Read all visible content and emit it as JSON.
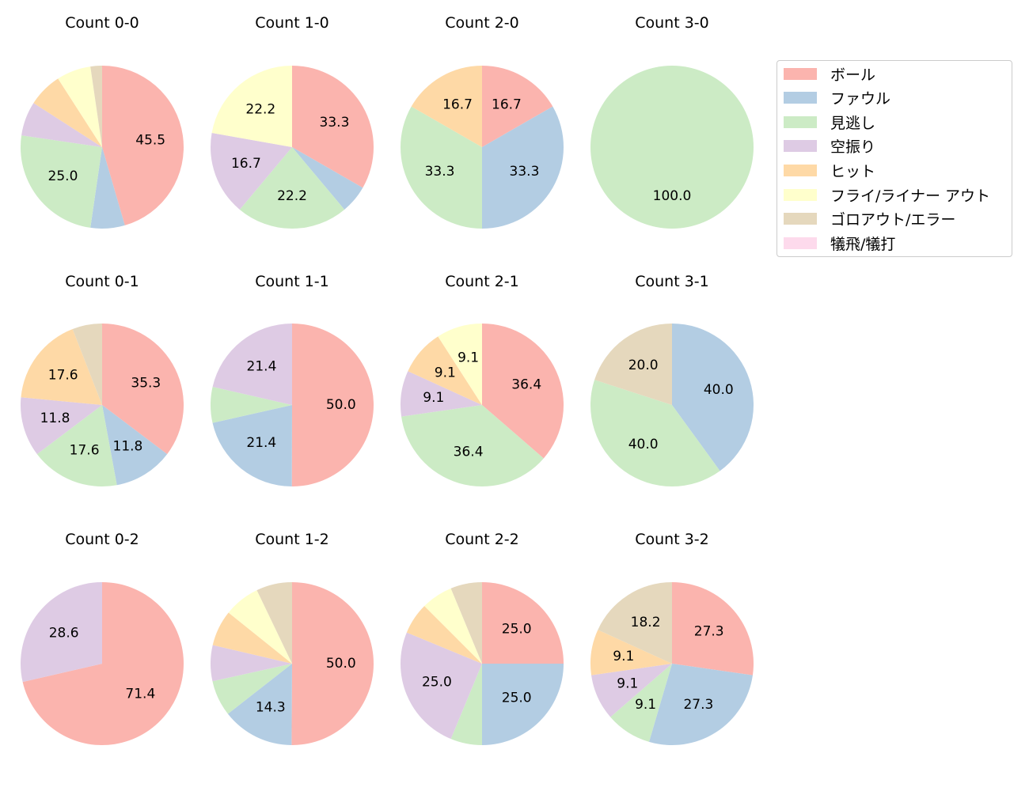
{
  "chart_data": {
    "type": "pie",
    "layout": {
      "rows": 3,
      "cols": 4,
      "legend_position": "upper right"
    },
    "legend": [
      {
        "label": "ボール",
        "color": "#fbb4ae"
      },
      {
        "label": "ファウル",
        "color": "#b3cde3"
      },
      {
        "label": "見逃し",
        "color": "#ccebc5"
      },
      {
        "label": "空振り",
        "color": "#decbe4"
      },
      {
        "label": "ヒット",
        "color": "#fed9a6"
      },
      {
        "label": "フライ/ライナー アウト",
        "color": "#ffffcc"
      },
      {
        "label": "ゴロアウト/エラー",
        "color": "#e5d8bd"
      },
      {
        "label": "犠飛/犠打",
        "color": "#fddaec"
      }
    ],
    "categories": [
      "ボール",
      "ファウル",
      "見逃し",
      "空振り",
      "ヒット",
      "フライ/ライナー アウト",
      "ゴロアウト/エラー",
      "犠飛/犠打"
    ],
    "charts": [
      {
        "title": "Count 0-0",
        "row": 0,
        "col": 0,
        "values": [
          45.5,
          6.8,
          25.0,
          6.8,
          6.8,
          6.8,
          2.3,
          0
        ],
        "labels_shown": [
          "45.5",
          "",
          "25.0",
          "",
          "",
          "",
          "",
          ""
        ]
      },
      {
        "title": "Count 1-0",
        "row": 0,
        "col": 1,
        "values": [
          33.3,
          5.6,
          22.2,
          16.7,
          0,
          22.2,
          0,
          0
        ],
        "labels_shown": [
          "33.3",
          "",
          "22.2",
          "16.7",
          "",
          "22.2",
          "",
          ""
        ]
      },
      {
        "title": "Count 2-0",
        "row": 0,
        "col": 2,
        "values": [
          16.7,
          33.3,
          33.3,
          0,
          16.7,
          0,
          0,
          0
        ],
        "labels_shown": [
          "16.7",
          "33.3",
          "33.3",
          "",
          "16.7",
          "",
          "",
          ""
        ]
      },
      {
        "title": "Count 3-0",
        "row": 0,
        "col": 3,
        "values": [
          0,
          0,
          100.0,
          0,
          0,
          0,
          0,
          0
        ],
        "labels_shown": [
          "",
          "",
          "100.0",
          "",
          "",
          "",
          "",
          ""
        ]
      },
      {
        "title": "Count 0-1",
        "row": 1,
        "col": 0,
        "values": [
          35.3,
          11.8,
          17.6,
          11.8,
          17.6,
          0,
          5.9,
          0
        ],
        "labels_shown": [
          "35.3",
          "11.8",
          "17.6",
          "11.8",
          "17.6",
          "",
          "",
          ""
        ]
      },
      {
        "title": "Count 1-1",
        "row": 1,
        "col": 1,
        "values": [
          50.0,
          21.4,
          7.1,
          21.4,
          0,
          0,
          0,
          0
        ],
        "labels_shown": [
          "50.0",
          "21.4",
          "",
          "21.4",
          "",
          "",
          "",
          ""
        ]
      },
      {
        "title": "Count 2-1",
        "row": 1,
        "col": 2,
        "values": [
          36.4,
          0,
          36.4,
          9.1,
          9.1,
          9.1,
          0,
          0
        ],
        "labels_shown": [
          "36.4",
          "",
          "36.4",
          "9.1",
          "9.1",
          "9.1",
          "",
          ""
        ]
      },
      {
        "title": "Count 3-1",
        "row": 1,
        "col": 3,
        "values": [
          0,
          40.0,
          40.0,
          0,
          0,
          0,
          20.0,
          0
        ],
        "labels_shown": [
          "",
          "40.0",
          "40.0",
          "",
          "",
          "",
          "20.0",
          ""
        ]
      },
      {
        "title": "Count 0-2",
        "row": 2,
        "col": 0,
        "values": [
          71.4,
          0,
          0,
          28.6,
          0,
          0,
          0,
          0
        ],
        "labels_shown": [
          "71.4",
          "",
          "",
          "28.6",
          "",
          "",
          "",
          ""
        ]
      },
      {
        "title": "Count 1-2",
        "row": 2,
        "col": 1,
        "values": [
          50.0,
          14.3,
          7.1,
          7.1,
          7.1,
          7.1,
          7.1,
          0
        ],
        "labels_shown": [
          "50.0",
          "14.3",
          "",
          "",
          "",
          "",
          "",
          ""
        ]
      },
      {
        "title": "Count 2-2",
        "row": 2,
        "col": 2,
        "values": [
          25.0,
          25.0,
          6.25,
          25.0,
          6.25,
          6.25,
          6.25,
          0
        ],
        "labels_shown": [
          "25.0",
          "25.0",
          "",
          "25.0",
          "",
          "",
          "",
          ""
        ]
      },
      {
        "title": "Count 3-2",
        "row": 2,
        "col": 3,
        "values": [
          27.3,
          27.3,
          9.1,
          9.1,
          9.1,
          0,
          18.2,
          0
        ],
        "labels_shown": [
          "27.3",
          "27.3",
          "9.1",
          "9.1",
          "9.1",
          "",
          "18.2",
          ""
        ]
      }
    ]
  }
}
